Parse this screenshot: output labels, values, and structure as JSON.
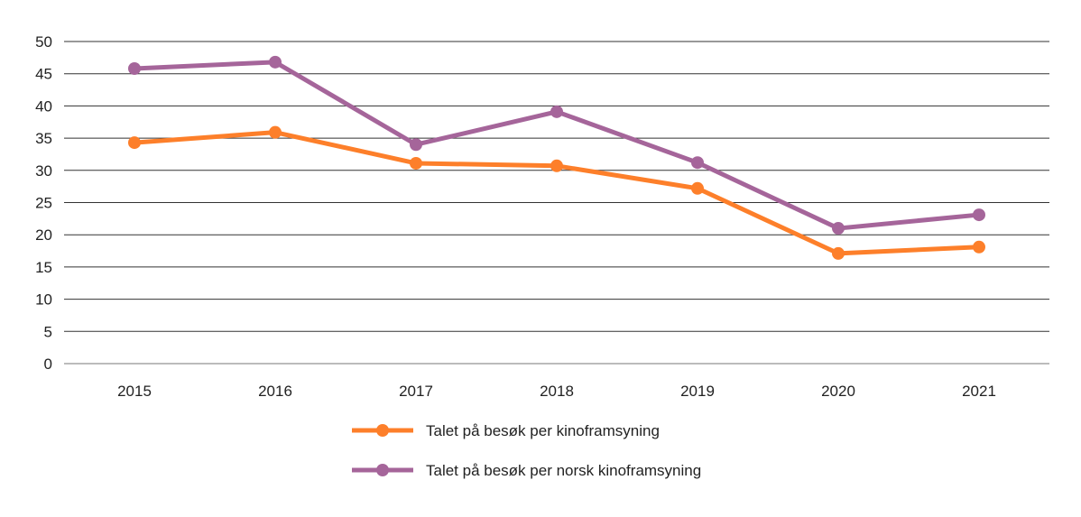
{
  "chart_data": {
    "type": "line",
    "title": "",
    "xlabel": "",
    "ylabel": "",
    "categories": [
      "2015",
      "2016",
      "2017",
      "2018",
      "2019",
      "2020",
      "2021"
    ],
    "ylim": [
      0,
      50
    ],
    "yticks": [
      0,
      5,
      10,
      15,
      20,
      25,
      30,
      35,
      40,
      45,
      50
    ],
    "grid": true,
    "legend_position": "bottom",
    "series": [
      {
        "name": "Talet på besøk per kinoframsyning",
        "color": "#fd7f2a",
        "values": [
          34.3,
          35.9,
          31.1,
          30.7,
          27.2,
          17.1,
          18.1
        ]
      },
      {
        "name": "Talet på besøk per norsk kinoframsyning",
        "color": "#a5659a",
        "values": [
          45.8,
          46.8,
          34.0,
          39.1,
          31.2,
          21.0,
          23.1
        ]
      }
    ]
  }
}
